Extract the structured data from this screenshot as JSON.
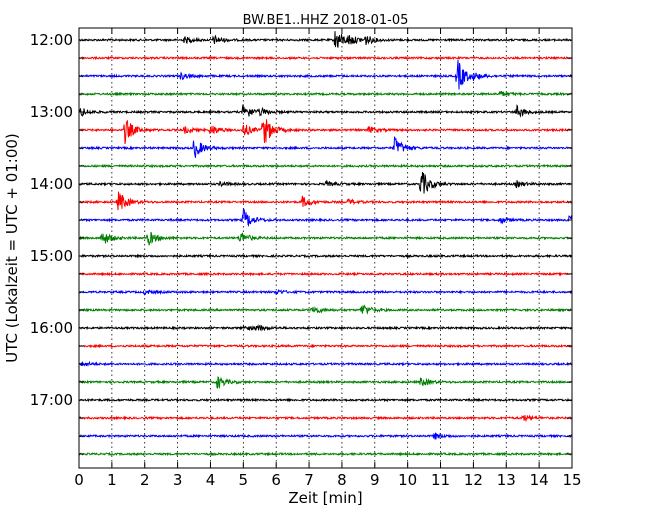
{
  "chart_data": {
    "type": "line",
    "title": "BW.BE1..HHZ 2018-01-05",
    "xlabel": "Zeit  [min]",
    "ylabel": "UTC (Lokalzeit = UTC + 01:00)",
    "xlim": [
      0,
      15
    ],
    "x_ticks": [
      "0",
      "1",
      "2",
      "3",
      "4",
      "5",
      "6",
      "7",
      "8",
      "9",
      "10",
      "11",
      "12",
      "13",
      "14",
      "15"
    ],
    "y_tick_labels": [
      "12:00",
      "13:00",
      "14:00",
      "15:00",
      "16:00",
      "17:00"
    ],
    "grid": true,
    "colors": [
      "#000000",
      "#ff0000",
      "#0000ff",
      "#008000"
    ],
    "series": [
      {
        "start": "12:00",
        "events": [
          [
            3.2,
            1.5
          ],
          [
            4.1,
            2.0
          ],
          [
            7.8,
            5.5
          ],
          [
            8.2,
            3.0
          ],
          [
            8.7,
            2.5
          ]
        ]
      },
      {
        "start": "12:15",
        "events": []
      },
      {
        "start": "12:30",
        "events": [
          [
            3.1,
            1.5
          ],
          [
            11.5,
            8.0
          ],
          [
            12.0,
            2.0
          ]
        ]
      },
      {
        "start": "12:45",
        "events": [
          [
            12.8,
            1.2
          ]
        ]
      },
      {
        "start": "13:00",
        "events": [
          [
            0.05,
            2.0
          ],
          [
            5.0,
            4.0
          ],
          [
            5.5,
            2.0
          ],
          [
            13.3,
            3.0
          ]
        ]
      },
      {
        "start": "13:15",
        "events": [
          [
            1.4,
            6.0
          ],
          [
            3.2,
            1.5
          ],
          [
            4.0,
            2.5
          ],
          [
            5.0,
            3.0
          ],
          [
            5.6,
            8.0
          ],
          [
            8.8,
            1.5
          ]
        ]
      },
      {
        "start": "13:30",
        "events": [
          [
            3.5,
            5.0
          ],
          [
            9.6,
            5.0
          ]
        ]
      },
      {
        "start": "13:45",
        "events": []
      },
      {
        "start": "14:00",
        "events": [
          [
            4.3,
            1.0
          ],
          [
            7.5,
            1.0
          ],
          [
            10.4,
            7.0
          ],
          [
            13.3,
            1.5
          ]
        ]
      },
      {
        "start": "14:15",
        "events": [
          [
            1.2,
            5.0
          ],
          [
            6.8,
            2.5
          ],
          [
            8.2,
            1.2
          ]
        ]
      },
      {
        "start": "14:30",
        "events": [
          [
            5.0,
            5.0
          ],
          [
            12.8,
            1.5
          ],
          [
            14.9,
            2.5
          ]
        ]
      },
      {
        "start": "14:45",
        "events": [
          [
            0.7,
            3.5
          ],
          [
            2.1,
            3.5
          ],
          [
            4.9,
            3.0
          ]
        ]
      },
      {
        "start": "15:00",
        "events": []
      },
      {
        "start": "15:15",
        "events": []
      },
      {
        "start": "15:30",
        "events": [
          [
            2.0,
            1.0
          ],
          [
            6.0,
            1.0
          ]
        ]
      },
      {
        "start": "15:45",
        "events": [
          [
            7.1,
            2.0
          ],
          [
            8.6,
            3.0
          ]
        ]
      },
      {
        "start": "16:00",
        "events": [
          [
            5.0,
            1.0
          ],
          [
            5.4,
            1.5
          ]
        ]
      },
      {
        "start": "16:15",
        "events": []
      },
      {
        "start": "16:30",
        "events": [
          [
            0.1,
            1.0
          ]
        ]
      },
      {
        "start": "16:45",
        "events": [
          [
            4.2,
            3.0
          ],
          [
            10.4,
            2.0
          ]
        ]
      },
      {
        "start": "17:00",
        "events": []
      },
      {
        "start": "17:15",
        "events": [
          [
            13.5,
            1.5
          ]
        ]
      },
      {
        "start": "17:30",
        "events": [
          [
            10.8,
            1.5
          ]
        ]
      },
      {
        "start": "17:45",
        "events": []
      }
    ]
  }
}
